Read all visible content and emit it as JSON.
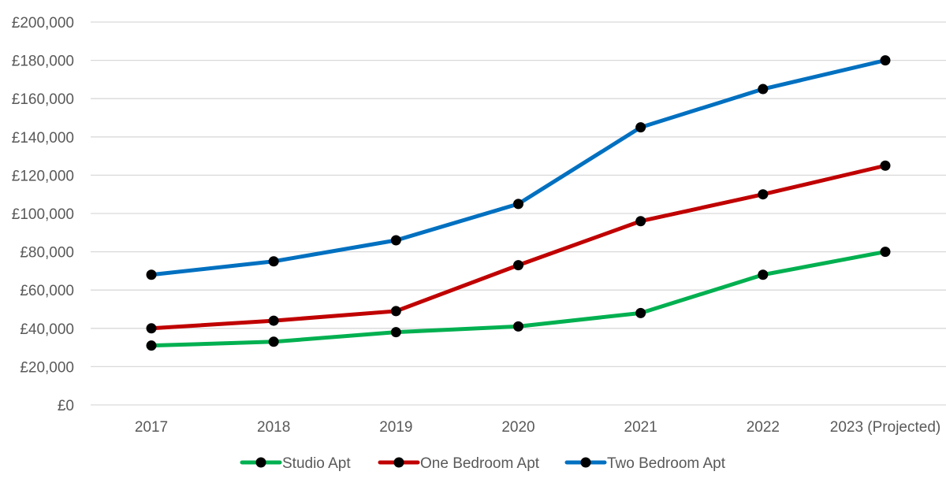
{
  "chart_data": {
    "type": "line",
    "categories": [
      "2017",
      "2018",
      "2019",
      "2020",
      "2021",
      "2022",
      "2023 (Projected)"
    ],
    "series": [
      {
        "name": "Studio Apt",
        "color": "#00b050",
        "values": [
          31000,
          33000,
          38000,
          41000,
          48000,
          68000,
          80000
        ]
      },
      {
        "name": "One Bedroom Apt",
        "color": "#c00000",
        "values": [
          40000,
          44000,
          49000,
          73000,
          96000,
          110000,
          125000
        ]
      },
      {
        "name": "Two Bedroom Apt",
        "color": "#0070c0",
        "values": [
          68000,
          75000,
          86000,
          105000,
          145000,
          165000,
          180000
        ]
      }
    ],
    "ylim": [
      0,
      200000
    ],
    "y_tick_step": 20000,
    "y_tick_labels": [
      "£0",
      "£20,000",
      "£40,000",
      "£60,000",
      "£80,000",
      "£100,000",
      "£120,000",
      "£140,000",
      "£160,000",
      "£180,000",
      "£200,000"
    ],
    "marker_color": "#000000",
    "grid": true,
    "legend_position": "bottom",
    "title": "",
    "xlabel": "",
    "ylabel": ""
  }
}
